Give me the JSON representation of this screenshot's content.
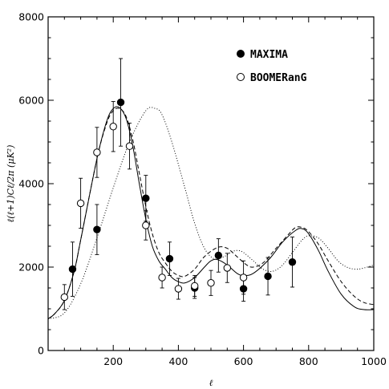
{
  "chart_data": {
    "type": "scatter",
    "xlabel": "ℓ",
    "ylabel": "ℓ(ℓ+1)Cℓ/2π  (μK²)",
    "xlim": [
      0,
      1000
    ],
    "ylim": [
      0,
      8000
    ],
    "x_ticks": [
      200,
      400,
      600,
      800,
      1000
    ],
    "y_ticks": [
      0,
      2000,
      4000,
      6000,
      8000
    ],
    "grid": false,
    "legend_position": "top-right",
    "legend": [
      {
        "name": "MAXIMA",
        "marker": "filled-circle"
      },
      {
        "name": "BOOMERanG",
        "marker": "open-circle"
      }
    ],
    "series": [
      {
        "name": "MAXIMA",
        "marker": "filled-circle",
        "points": [
          {
            "x": 75,
            "y": 1950,
            "err": 650
          },
          {
            "x": 150,
            "y": 2900,
            "err": 600
          },
          {
            "x": 223,
            "y": 5950,
            "err": 1050
          },
          {
            "x": 300,
            "y": 3650,
            "err": 550
          },
          {
            "x": 373,
            "y": 2200,
            "err": 400
          },
          {
            "x": 450,
            "y": 1500,
            "err": 250
          },
          {
            "x": 523,
            "y": 2280,
            "err": 400
          },
          {
            "x": 600,
            "y": 1480,
            "err": 300
          },
          {
            "x": 675,
            "y": 1780,
            "err": 450
          },
          {
            "x": 750,
            "y": 2120,
            "err": 600
          }
        ]
      },
      {
        "name": "BOOMERanG",
        "marker": "open-circle",
        "points": [
          {
            "x": 50,
            "y": 1280,
            "err": 300
          },
          {
            "x": 100,
            "y": 3530,
            "err": 600
          },
          {
            "x": 150,
            "y": 4750,
            "err": 600
          },
          {
            "x": 200,
            "y": 5370,
            "err": 600
          },
          {
            "x": 250,
            "y": 4900,
            "err": 550
          },
          {
            "x": 300,
            "y": 3000,
            "err": 350
          },
          {
            "x": 350,
            "y": 1750,
            "err": 250
          },
          {
            "x": 400,
            "y": 1480,
            "err": 250
          },
          {
            "x": 450,
            "y": 1550,
            "err": 250
          },
          {
            "x": 500,
            "y": 1620,
            "err": 300
          },
          {
            "x": 550,
            "y": 1980,
            "err": 350
          },
          {
            "x": 600,
            "y": 1750,
            "err": 400
          }
        ]
      },
      {
        "style": "solid",
        "points": [
          [
            0,
            760
          ],
          [
            20,
            880
          ],
          [
            50,
            1200
          ],
          [
            80,
            1900
          ],
          [
            100,
            2650
          ],
          [
            150,
            4600
          ],
          [
            180,
            5500
          ],
          [
            200,
            5800
          ],
          [
            220,
            5820
          ],
          [
            240,
            5550
          ],
          [
            260,
            4900
          ],
          [
            280,
            4000
          ],
          [
            300,
            3150
          ],
          [
            320,
            2500
          ],
          [
            340,
            2150
          ],
          [
            360,
            1950
          ],
          [
            380,
            1750
          ],
          [
            400,
            1650
          ],
          [
            420,
            1620
          ],
          [
            450,
            1750
          ],
          [
            480,
            2000
          ],
          [
            500,
            2150
          ],
          [
            520,
            2180
          ],
          [
            550,
            2050
          ],
          [
            580,
            1850
          ],
          [
            600,
            1800
          ],
          [
            630,
            1850
          ],
          [
            680,
            2200
          ],
          [
            720,
            2600
          ],
          [
            760,
            2880
          ],
          [
            780,
            2920
          ],
          [
            800,
            2800
          ],
          [
            830,
            2400
          ],
          [
            860,
            1900
          ],
          [
            900,
            1350
          ],
          [
            940,
            1050
          ],
          [
            970,
            980
          ],
          [
            1000,
            980
          ]
        ]
      },
      {
        "style": "dashed",
        "points": [
          [
            0,
            760
          ],
          [
            20,
            880
          ],
          [
            50,
            1200
          ],
          [
            80,
            1900
          ],
          [
            100,
            2650
          ],
          [
            150,
            4600
          ],
          [
            180,
            5450
          ],
          [
            200,
            5750
          ],
          [
            220,
            5800
          ],
          [
            240,
            5600
          ],
          [
            260,
            5050
          ],
          [
            280,
            4250
          ],
          [
            300,
            3450
          ],
          [
            320,
            2800
          ],
          [
            340,
            2350
          ],
          [
            360,
            2100
          ],
          [
            380,
            1900
          ],
          [
            400,
            1800
          ],
          [
            420,
            1780
          ],
          [
            450,
            1950
          ],
          [
            480,
            2250
          ],
          [
            520,
            2470
          ],
          [
            550,
            2450
          ],
          [
            580,
            2250
          ],
          [
            610,
            2050
          ],
          [
            630,
            2000
          ],
          [
            660,
            2100
          ],
          [
            700,
            2450
          ],
          [
            740,
            2800
          ],
          [
            760,
            2950
          ],
          [
            780,
            2950
          ],
          [
            800,
            2850
          ],
          [
            830,
            2550
          ],
          [
            860,
            2150
          ],
          [
            900,
            1650
          ],
          [
            940,
            1300
          ],
          [
            970,
            1150
          ],
          [
            1000,
            1100
          ]
        ]
      },
      {
        "style": "dotted",
        "points": [
          [
            0,
            760
          ],
          [
            50,
            900
          ],
          [
            100,
            1600
          ],
          [
            150,
            2700
          ],
          [
            200,
            3900
          ],
          [
            250,
            5000
          ],
          [
            300,
            5750
          ],
          [
            330,
            5800
          ],
          [
            350,
            5650
          ],
          [
            380,
            5000
          ],
          [
            420,
            3900
          ],
          [
            450,
            3050
          ],
          [
            480,
            2450
          ],
          [
            510,
            2200
          ],
          [
            540,
            2250
          ],
          [
            560,
            2350
          ],
          [
            580,
            2400
          ],
          [
            600,
            2350
          ],
          [
            630,
            2150
          ],
          [
            660,
            1950
          ],
          [
            690,
            1900
          ],
          [
            720,
            2050
          ],
          [
            750,
            2350
          ],
          [
            780,
            2650
          ],
          [
            800,
            2750
          ],
          [
            830,
            2700
          ],
          [
            860,
            2450
          ],
          [
            890,
            2150
          ],
          [
            920,
            1990
          ],
          [
            950,
            1950
          ],
          [
            980,
            2000
          ],
          [
            1000,
            2050
          ]
        ]
      }
    ]
  }
}
